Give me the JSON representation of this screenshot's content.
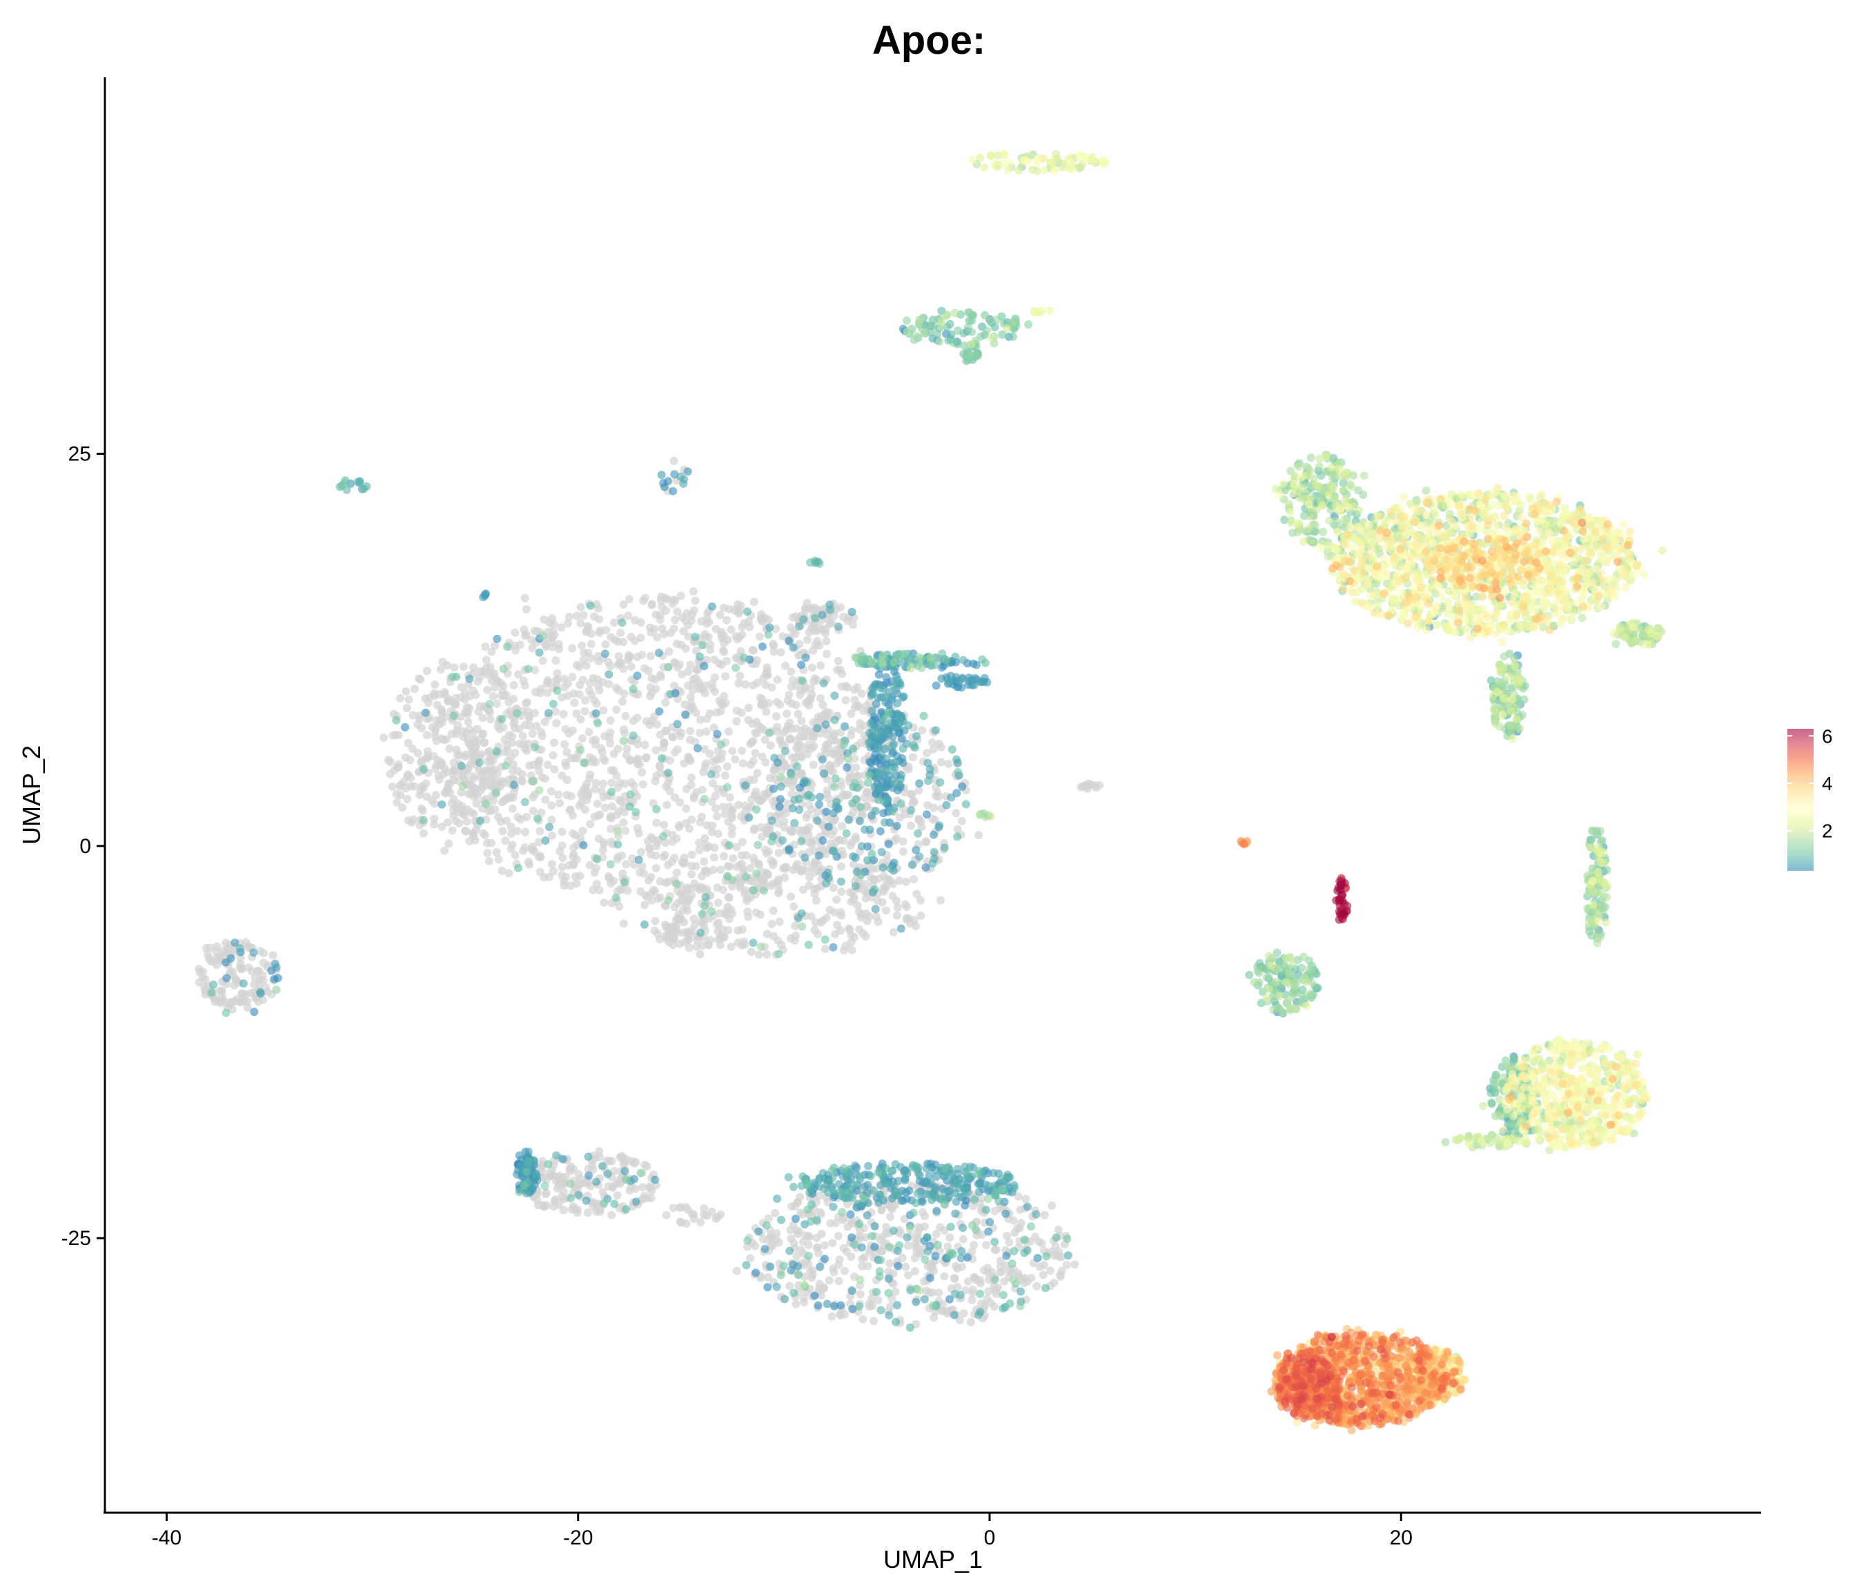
{
  "chart_data": {
    "type": "scatter",
    "title": "Apoe:",
    "xlabel": "UMAP_1",
    "ylabel": "UMAP_2",
    "xlim": [
      -43,
      37.5
    ],
    "ylim": [
      -42.5,
      49
    ],
    "x_ticks": [
      {
        "value": -40,
        "label": "-40"
      },
      {
        "value": -20,
        "label": "-20"
      },
      {
        "value": 0,
        "label": "0"
      },
      {
        "value": 20,
        "label": "20"
      }
    ],
    "y_ticks": [
      {
        "value": 25,
        "label": "25"
      },
      {
        "value": 0,
        "label": "0"
      },
      {
        "value": -25,
        "label": "-25"
      }
    ],
    "grid": false,
    "legend": {
      "placement": "right",
      "range": [
        0.3,
        6.3
      ],
      "ticks": [
        {
          "value": 2,
          "label": "2"
        },
        {
          "value": 4,
          "label": "4"
        },
        {
          "value": 6,
          "label": "6"
        }
      ]
    },
    "colors": {
      "zero": "#d3d3d3",
      "scale": [
        "#3288bd",
        "#66c2a5",
        "#abdda4",
        "#e6f598",
        "#ffffbf",
        "#fee08b",
        "#fdae61",
        "#f46d43",
        "#d53e4f",
        "#9e0142"
      ]
    },
    "clusters": [
      {
        "id": "big-grey-mass",
        "cx": -16,
        "cy": 6,
        "rx": 11,
        "ry": 10,
        "n": 1500,
        "expr_frac": 0.08,
        "expr_mean": 0.9,
        "expr_sd": 0.4
      },
      {
        "id": "grey-mass-left",
        "cx": -26,
        "cy": 6,
        "rx": 3.5,
        "ry": 6,
        "n": 260,
        "expr_frac": 0.06,
        "expr_mean": 0.9,
        "expr_sd": 0.4
      },
      {
        "id": "grey-mass-right",
        "cx": -6,
        "cy": 3,
        "rx": 5,
        "ry": 6,
        "n": 420,
        "expr_frac": 0.35,
        "expr_mean": 0.6,
        "expr_sd": 0.2
      },
      {
        "id": "grey-mass-bottom",
        "cx": -10,
        "cy": -4,
        "rx": 7,
        "ry": 3,
        "n": 240,
        "expr_frac": 0.1,
        "expr_mean": 0.9,
        "expr_sd": 0.4
      },
      {
        "id": "grey-mass-bottom-lobe",
        "cx": -14.5,
        "cy": -5.5,
        "rx": 1.8,
        "ry": 1.0,
        "n": 50,
        "expr_frac": 0,
        "expr_mean": 0,
        "expr_sd": 0
      },
      {
        "id": "blue-edge-stripe",
        "cx": -5,
        "cy": 7,
        "rx": 0.9,
        "ry": 5,
        "n": 180,
        "expr_frac": 1.0,
        "expr_mean": 0.5,
        "expr_sd": 0.15
      },
      {
        "id": "blue-top-band",
        "cx": -3.5,
        "cy": 11.8,
        "rx": 3.5,
        "ry": 0.5,
        "n": 90,
        "expr_frac": 1.0,
        "expr_mean": 0.9,
        "expr_sd": 0.4
      },
      {
        "id": "blue-right-tail",
        "cx": -1.5,
        "cy": 10.5,
        "rx": 1.5,
        "ry": 0.4,
        "n": 30,
        "expr_frac": 1.0,
        "expr_mean": 0.5,
        "expr_sd": 0.1
      },
      {
        "id": "grey-top-bump",
        "cx": -8,
        "cy": 14.5,
        "rx": 1.5,
        "ry": 1.0,
        "n": 60,
        "expr_frac": 0.1,
        "expr_mean": 0.6,
        "expr_sd": 0.1
      },
      {
        "id": "green-dot-right",
        "cx": -0.2,
        "cy": 1.9,
        "rx": 0.3,
        "ry": 0.3,
        "n": 6,
        "expr_frac": 1.0,
        "expr_mean": 1.6,
        "expr_sd": 0.2
      },
      {
        "id": "left-island",
        "cx": -36.5,
        "cy": -8.2,
        "rx": 2.0,
        "ry": 2.2,
        "n": 140,
        "expr_frac": 0.15,
        "expr_mean": 0.7,
        "expr_sd": 0.3
      },
      {
        "id": "small-blue-left",
        "cx": -31,
        "cy": 23,
        "rx": 0.8,
        "ry": 0.4,
        "n": 12,
        "expr_frac": 1.0,
        "expr_mean": 0.8,
        "expr_sd": 0.2
      },
      {
        "id": "small-blue-mid",
        "cx": -24.5,
        "cy": 16,
        "rx": 0.2,
        "ry": 0.2,
        "n": 4,
        "expr_frac": 1.0,
        "expr_mean": 0.5,
        "expr_sd": 0.1
      },
      {
        "id": "small-top-grey-blue",
        "cx": -15.5,
        "cy": 23.6,
        "rx": 0.8,
        "ry": 1.0,
        "n": 14,
        "expr_frac": 0.6,
        "expr_mean": 0.5,
        "expr_sd": 0.1
      },
      {
        "id": "small-teal",
        "cx": -8.5,
        "cy": 18,
        "rx": 0.3,
        "ry": 0.2,
        "n": 5,
        "expr_frac": 1.0,
        "expr_mean": 0.8,
        "expr_sd": 0.2
      },
      {
        "id": "small-grey-right",
        "cx": 4.8,
        "cy": 3.8,
        "rx": 0.7,
        "ry": 0.2,
        "n": 10,
        "expr_frac": 0,
        "expr_mean": 0,
        "expr_sd": 0
      },
      {
        "id": "top-arc",
        "cx": 2.2,
        "cy": 43.6,
        "rx": 3.6,
        "ry": 0.6,
        "n": 70,
        "expr_frac": 1.0,
        "expr_mean": 2.4,
        "expr_sd": 0.4
      },
      {
        "id": "top-v-shape",
        "cx": -1.3,
        "cy": 33,
        "rx": 3.0,
        "ry": 1.2,
        "n": 90,
        "expr_frac": 1.0,
        "expr_mean": 1.2,
        "expr_sd": 0.4
      },
      {
        "id": "top-v-point",
        "cx": -1.0,
        "cy": 31.5,
        "rx": 0.6,
        "ry": 0.6,
        "n": 20,
        "expr_frac": 1.0,
        "expr_mean": 1.1,
        "expr_sd": 0.2
      },
      {
        "id": "top-v-tail",
        "cx": 2.5,
        "cy": 34,
        "rx": 0.5,
        "ry": 0.2,
        "n": 6,
        "expr_frac": 1.0,
        "expr_mean": 2.6,
        "expr_sd": 0.2
      },
      {
        "id": "bottom-center-main",
        "cx": -4,
        "cy": -26,
        "rx": 8,
        "ry": 4.5,
        "n": 650,
        "expr_frac": 0.22,
        "expr_mean": 0.7,
        "expr_sd": 0.4
      },
      {
        "id": "bottom-center-blue-band",
        "cx": -4,
        "cy": -21.5,
        "rx": 5.5,
        "ry": 1.3,
        "n": 260,
        "expr_frac": 1.0,
        "expr_mean": 0.6,
        "expr_sd": 0.2
      },
      {
        "id": "bottom-left-group",
        "cx": -19.5,
        "cy": -21.5,
        "rx": 3.5,
        "ry": 2.0,
        "n": 190,
        "expr_frac": 0.12,
        "expr_mean": 0.8,
        "expr_sd": 0.3
      },
      {
        "id": "bottom-left-blue-edge",
        "cx": -22.5,
        "cy": -20.8,
        "rx": 0.5,
        "ry": 1.5,
        "n": 70,
        "expr_frac": 1.0,
        "expr_mean": 0.5,
        "expr_sd": 0.1
      },
      {
        "id": "bottom-bridge",
        "cx": -14.5,
        "cy": -23.5,
        "rx": 1.5,
        "ry": 0.6,
        "n": 20,
        "expr_frac": 0,
        "expr_mean": 0,
        "expr_sd": 0
      },
      {
        "id": "right-top-wedge",
        "cx": 24,
        "cy": 18,
        "rx": 7.5,
        "ry": 4.5,
        "n": 1400,
        "expr_frac": 1.0,
        "expr_mean": 2.5,
        "expr_sd": 0.7
      },
      {
        "id": "right-top-wedge-hot",
        "cx": 24,
        "cy": 18,
        "rx": 2.8,
        "ry": 1.6,
        "n": 150,
        "expr_frac": 1.0,
        "expr_mean": 3.6,
        "expr_sd": 0.4
      },
      {
        "id": "right-top-wedge-tip-left",
        "cx": 16,
        "cy": 22,
        "rx": 2.0,
        "ry": 3.0,
        "n": 200,
        "expr_frac": 1.0,
        "expr_mean": 1.6,
        "expr_sd": 0.5
      },
      {
        "id": "right-top-wedge-tail",
        "cx": 25.2,
        "cy": 9.5,
        "rx": 0.8,
        "ry": 2.8,
        "n": 120,
        "expr_frac": 1.0,
        "expr_mean": 1.5,
        "expr_sd": 0.5
      },
      {
        "id": "right-top-wedge-right-tip",
        "cx": 31.5,
        "cy": 13.5,
        "rx": 1.2,
        "ry": 0.8,
        "n": 70,
        "expr_frac": 1.0,
        "expr_mean": 1.7,
        "expr_sd": 0.4
      },
      {
        "id": "right-diagonal-strip",
        "cx": 29.5,
        "cy": -2.6,
        "rx": 0.5,
        "ry": 4.0,
        "n": 110,
        "expr_frac": 1.0,
        "expr_mean": 1.5,
        "expr_sd": 0.5
      },
      {
        "id": "orange-dot",
        "cx": 12.4,
        "cy": 0.3,
        "rx": 0.2,
        "ry": 0.2,
        "n": 6,
        "expr_frac": 1.0,
        "expr_mean": 4.6,
        "expr_sd": 0.2
      },
      {
        "id": "red-streak",
        "cx": 17.1,
        "cy": -3.4,
        "rx": 0.3,
        "ry": 1.4,
        "n": 40,
        "expr_frac": 1.0,
        "expr_mean": 6.1,
        "expr_sd": 0.2
      },
      {
        "id": "green-ring",
        "cx": 14.4,
        "cy": -8.7,
        "rx": 1.6,
        "ry": 2.0,
        "n": 130,
        "expr_frac": 1.0,
        "expr_mean": 1.3,
        "expr_sd": 0.4
      },
      {
        "id": "right-lower-wedge",
        "cx": 28.5,
        "cy": -15.8,
        "rx": 3.5,
        "ry": 3.5,
        "n": 550,
        "expr_frac": 1.0,
        "expr_mean": 2.6,
        "expr_sd": 0.6
      },
      {
        "id": "right-lower-wedge-edge",
        "cx": 25.5,
        "cy": -16,
        "rx": 1.2,
        "ry": 2.5,
        "n": 130,
        "expr_frac": 1.0,
        "expr_mean": 1.2,
        "expr_sd": 0.4
      },
      {
        "id": "right-lower-wedge-tail",
        "cx": 24.5,
        "cy": -18.8,
        "rx": 2.2,
        "ry": 0.4,
        "n": 40,
        "expr_frac": 1.0,
        "expr_mean": 1.9,
        "expr_sd": 0.3
      },
      {
        "id": "bottom-right-red",
        "cx": 18,
        "cy": -34,
        "rx": 4.2,
        "ry": 3.0,
        "n": 1000,
        "expr_frac": 1.0,
        "expr_mean": 4.3,
        "expr_sd": 0.5
      },
      {
        "id": "bottom-right-red-tail",
        "cx": 21.5,
        "cy": -33.8,
        "rx": 1.6,
        "ry": 1.8,
        "n": 220,
        "expr_frac": 1.0,
        "expr_mean": 3.3,
        "expr_sd": 0.6
      },
      {
        "id": "bottom-right-red-hot",
        "cx": 15.5,
        "cy": -34.5,
        "rx": 1.5,
        "ry": 2.0,
        "n": 220,
        "expr_frac": 1.0,
        "expr_mean": 4.9,
        "expr_sd": 0.3
      }
    ]
  }
}
